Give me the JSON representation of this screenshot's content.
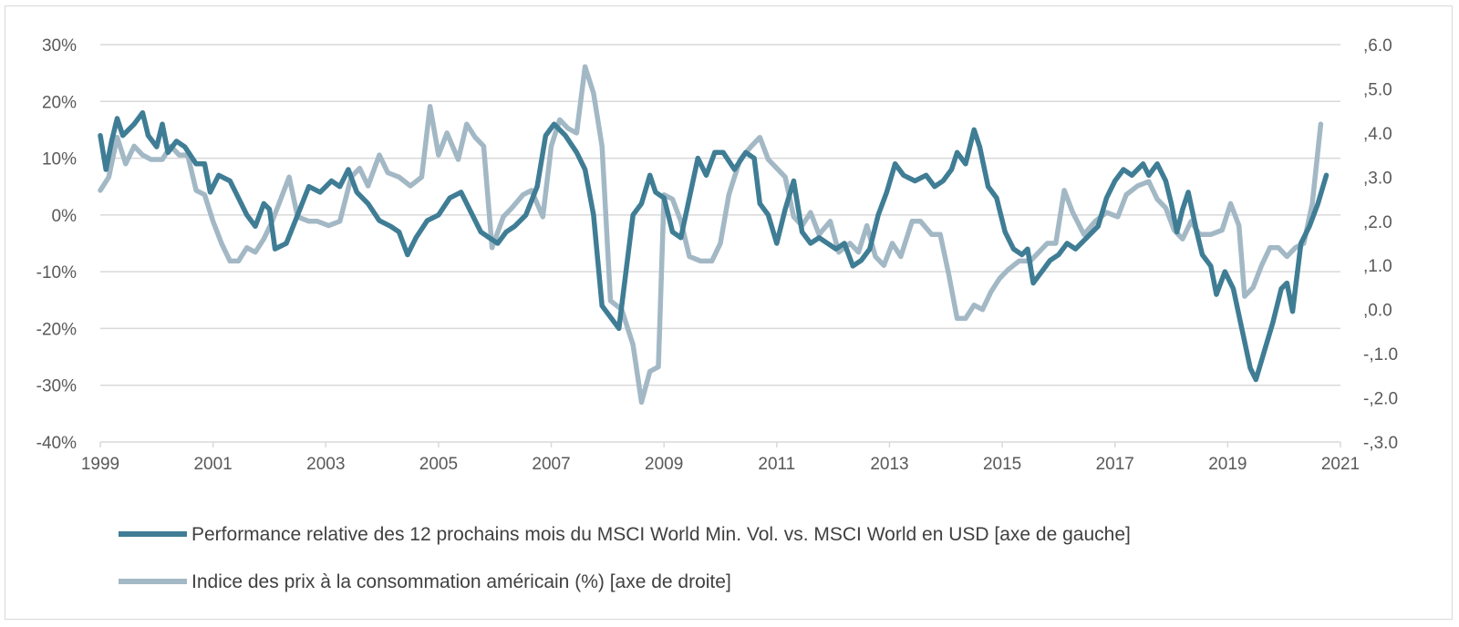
{
  "chart_data": {
    "type": "line",
    "title": "",
    "xlabel": "",
    "ylabel": "",
    "x_ticks": [
      "1999",
      "2001",
      "2003",
      "2005",
      "2007",
      "2009",
      "2011",
      "2013",
      "2015",
      "2017",
      "2019",
      "2021"
    ],
    "xlim": [
      1999,
      2021
    ],
    "ylim_left": [
      -40,
      30
    ],
    "ylim_right": [
      -3.0,
      6.0
    ],
    "y_ticks_left": [
      "30%",
      "20%",
      "10%",
      "0%",
      "-10%",
      "-20%",
      "-30%",
      "-40%"
    ],
    "y_ticks_right": [
      ",6.0",
      ",5.0",
      ",4.0",
      ",3.0",
      ",2.0",
      ",1.0",
      ",0.0",
      "-,1.0",
      "-,2.0",
      "-,3.0"
    ],
    "grid": "horizontal",
    "legend_placement": "bottom",
    "colors": {
      "series1": "#3f7d95",
      "series2": "#a3b8c5",
      "grid": "#d9d9d9",
      "text": "#595959"
    },
    "series": [
      {
        "name": "Performance relative des 12 prochains mois du MSCI World Min. Vol. vs. MSCI World en USD [axe de gauche]",
        "axis": "left",
        "unit": "%",
        "points": [
          [
            1999.0,
            14
          ],
          [
            1999.1,
            8
          ],
          [
            1999.2,
            13
          ],
          [
            1999.3,
            17
          ],
          [
            1999.4,
            14
          ],
          [
            1999.6,
            16
          ],
          [
            1999.75,
            18
          ],
          [
            1999.85,
            14
          ],
          [
            2000.0,
            12
          ],
          [
            2000.1,
            16
          ],
          [
            2000.2,
            11
          ],
          [
            2000.35,
            13
          ],
          [
            2000.5,
            12
          ],
          [
            2000.7,
            9
          ],
          [
            2000.85,
            9
          ],
          [
            2000.95,
            4
          ],
          [
            2001.1,
            7
          ],
          [
            2001.3,
            6
          ],
          [
            2001.45,
            3
          ],
          [
            2001.6,
            0
          ],
          [
            2001.75,
            -2
          ],
          [
            2001.9,
            2
          ],
          [
            2002.0,
            1
          ],
          [
            2002.1,
            -6
          ],
          [
            2002.3,
            -5
          ],
          [
            2002.5,
            0
          ],
          [
            2002.7,
            5
          ],
          [
            2002.9,
            4
          ],
          [
            2003.1,
            6
          ],
          [
            2003.25,
            5
          ],
          [
            2003.4,
            8
          ],
          [
            2003.55,
            4
          ],
          [
            2003.75,
            2
          ],
          [
            2003.95,
            -1
          ],
          [
            2004.15,
            -2
          ],
          [
            2004.3,
            -3
          ],
          [
            2004.45,
            -7
          ],
          [
            2004.6,
            -4
          ],
          [
            2004.8,
            -1
          ],
          [
            2005.0,
            0
          ],
          [
            2005.2,
            3
          ],
          [
            2005.4,
            4
          ],
          [
            2005.55,
            1
          ],
          [
            2005.75,
            -3
          ],
          [
            2005.9,
            -4
          ],
          [
            2006.05,
            -5
          ],
          [
            2006.2,
            -3
          ],
          [
            2006.35,
            -2
          ],
          [
            2006.55,
            0
          ],
          [
            2006.75,
            5
          ],
          [
            2006.9,
            14
          ],
          [
            2007.05,
            16
          ],
          [
            2007.25,
            14
          ],
          [
            2007.45,
            11
          ],
          [
            2007.6,
            8
          ],
          [
            2007.75,
            0
          ],
          [
            2007.9,
            -16
          ],
          [
            2008.05,
            -18
          ],
          [
            2008.2,
            -20
          ],
          [
            2008.3,
            -12
          ],
          [
            2008.45,
            0
          ],
          [
            2008.6,
            2
          ],
          [
            2008.75,
            7
          ],
          [
            2008.85,
            4
          ],
          [
            2009.0,
            3
          ],
          [
            2009.15,
            -3
          ],
          [
            2009.3,
            -4
          ],
          [
            2009.45,
            3
          ],
          [
            2009.6,
            10
          ],
          [
            2009.75,
            7
          ],
          [
            2009.9,
            11
          ],
          [
            2010.05,
            11
          ],
          [
            2010.25,
            8
          ],
          [
            2010.45,
            11
          ],
          [
            2010.6,
            10
          ],
          [
            2010.7,
            2
          ],
          [
            2010.85,
            0
          ],
          [
            2011.0,
            -5
          ],
          [
            2011.15,
            1
          ],
          [
            2011.3,
            6
          ],
          [
            2011.45,
            -3
          ],
          [
            2011.6,
            -5
          ],
          [
            2011.75,
            -4
          ],
          [
            2011.9,
            -5
          ],
          [
            2012.05,
            -6
          ],
          [
            2012.2,
            -5
          ],
          [
            2012.35,
            -9
          ],
          [
            2012.5,
            -8
          ],
          [
            2012.65,
            -6
          ],
          [
            2012.8,
            0
          ],
          [
            2012.95,
            4
          ],
          [
            2013.1,
            9
          ],
          [
            2013.25,
            7
          ],
          [
            2013.45,
            6
          ],
          [
            2013.65,
            7
          ],
          [
            2013.8,
            5
          ],
          [
            2013.95,
            6
          ],
          [
            2014.1,
            8
          ],
          [
            2014.2,
            11
          ],
          [
            2014.35,
            9
          ],
          [
            2014.5,
            15
          ],
          [
            2014.6,
            12
          ],
          [
            2014.75,
            5
          ],
          [
            2014.9,
            3
          ],
          [
            2015.05,
            -3
          ],
          [
            2015.2,
            -6
          ],
          [
            2015.35,
            -7
          ],
          [
            2015.45,
            -6
          ],
          [
            2015.55,
            -12
          ],
          [
            2015.7,
            -10
          ],
          [
            2015.85,
            -8
          ],
          [
            2016.0,
            -7
          ],
          [
            2016.15,
            -5
          ],
          [
            2016.3,
            -6
          ],
          [
            2016.5,
            -4
          ],
          [
            2016.7,
            -2
          ],
          [
            2016.85,
            3
          ],
          [
            2017.0,
            6
          ],
          [
            2017.15,
            8
          ],
          [
            2017.3,
            7
          ],
          [
            2017.5,
            9
          ],
          [
            2017.6,
            7
          ],
          [
            2017.75,
            9
          ],
          [
            2017.9,
            6
          ],
          [
            2018.0,
            2
          ],
          [
            2018.1,
            -3
          ],
          [
            2018.2,
            1
          ],
          [
            2018.3,
            4
          ],
          [
            2018.45,
            -3
          ],
          [
            2018.55,
            -7
          ],
          [
            2018.7,
            -9
          ],
          [
            2018.8,
            -14
          ],
          [
            2018.95,
            -10
          ],
          [
            2019.1,
            -13
          ],
          [
            2019.25,
            -20
          ],
          [
            2019.4,
            -27
          ],
          [
            2019.5,
            -29
          ],
          [
            2019.65,
            -24
          ],
          [
            2019.8,
            -19
          ],
          [
            2019.95,
            -13
          ],
          [
            2020.05,
            -12
          ],
          [
            2020.15,
            -17
          ],
          [
            2020.3,
            -5
          ],
          [
            2020.45,
            -2
          ],
          [
            2020.6,
            2
          ],
          [
            2020.75,
            7
          ]
        ]
      },
      {
        "name": "Indice des prix à la consommation américain (%) [axe de droite]",
        "axis": "right",
        "unit": "%",
        "points": [
          [
            1999.0,
            2.7
          ],
          [
            1999.15,
            3.0
          ],
          [
            1999.3,
            3.9
          ],
          [
            1999.45,
            3.3
          ],
          [
            1999.6,
            3.7
          ],
          [
            1999.75,
            3.5
          ],
          [
            1999.9,
            3.4
          ],
          [
            2000.1,
            3.4
          ],
          [
            2000.25,
            3.7
          ],
          [
            2000.4,
            3.5
          ],
          [
            2000.55,
            3.5
          ],
          [
            2000.7,
            2.7
          ],
          [
            2000.85,
            2.6
          ],
          [
            2001.0,
            2.0
          ],
          [
            2001.15,
            1.5
          ],
          [
            2001.3,
            1.1
          ],
          [
            2001.45,
            1.1
          ],
          [
            2001.6,
            1.4
          ],
          [
            2001.75,
            1.3
          ],
          [
            2001.9,
            1.6
          ],
          [
            2002.05,
            2.0
          ],
          [
            2002.2,
            2.5
          ],
          [
            2002.35,
            3.0
          ],
          [
            2002.5,
            2.1
          ],
          [
            2002.7,
            2.0
          ],
          [
            2002.85,
            2.0
          ],
          [
            2003.05,
            1.9
          ],
          [
            2003.25,
            2.0
          ],
          [
            2003.45,
            3.0
          ],
          [
            2003.6,
            3.2
          ],
          [
            2003.75,
            2.8
          ],
          [
            2003.95,
            3.5
          ],
          [
            2004.1,
            3.1
          ],
          [
            2004.3,
            3.0
          ],
          [
            2004.5,
            2.8
          ],
          [
            2004.7,
            3.0
          ],
          [
            2004.85,
            4.6
          ],
          [
            2005.0,
            3.5
          ],
          [
            2005.15,
            4.0
          ],
          [
            2005.35,
            3.4
          ],
          [
            2005.5,
            4.2
          ],
          [
            2005.65,
            3.9
          ],
          [
            2005.8,
            3.7
          ],
          [
            2005.95,
            1.4
          ],
          [
            2006.15,
            2.1
          ],
          [
            2006.3,
            2.3
          ],
          [
            2006.5,
            2.6
          ],
          [
            2006.65,
            2.7
          ],
          [
            2006.85,
            2.1
          ],
          [
            2007.0,
            3.7
          ],
          [
            2007.15,
            4.3
          ],
          [
            2007.3,
            4.1
          ],
          [
            2007.45,
            4.0
          ],
          [
            2007.6,
            5.5
          ],
          [
            2007.75,
            4.9
          ],
          [
            2007.9,
            3.7
          ],
          [
            2008.05,
            0.2
          ],
          [
            2008.25,
            0.0
          ],
          [
            2008.45,
            -0.8
          ],
          [
            2008.6,
            -2.1
          ],
          [
            2008.75,
            -1.4
          ],
          [
            2008.9,
            -1.3
          ],
          [
            2009.0,
            2.6
          ],
          [
            2009.15,
            2.5
          ],
          [
            2009.3,
            2.0
          ],
          [
            2009.45,
            1.2
          ],
          [
            2009.65,
            1.1
          ],
          [
            2009.85,
            1.1
          ],
          [
            2010.0,
            1.5
          ],
          [
            2010.15,
            2.6
          ],
          [
            2010.35,
            3.4
          ],
          [
            2010.55,
            3.7
          ],
          [
            2010.7,
            3.9
          ],
          [
            2010.85,
            3.4
          ],
          [
            2011.0,
            3.2
          ],
          [
            2011.15,
            3.0
          ],
          [
            2011.3,
            2.1
          ],
          [
            2011.45,
            1.9
          ],
          [
            2011.6,
            2.2
          ],
          [
            2011.75,
            1.7
          ],
          [
            2011.95,
            2.0
          ],
          [
            2012.1,
            1.3
          ],
          [
            2012.3,
            1.5
          ],
          [
            2012.45,
            1.3
          ],
          [
            2012.6,
            1.9
          ],
          [
            2012.75,
            1.2
          ],
          [
            2012.9,
            1.0
          ],
          [
            2013.05,
            1.5
          ],
          [
            2013.2,
            1.2
          ],
          [
            2013.4,
            2.0
          ],
          [
            2013.55,
            2.0
          ],
          [
            2013.75,
            1.7
          ],
          [
            2013.9,
            1.7
          ],
          [
            2014.05,
            0.8
          ],
          [
            2014.2,
            -0.2
          ],
          [
            2014.35,
            -0.2
          ],
          [
            2014.5,
            0.1
          ],
          [
            2014.65,
            0.0
          ],
          [
            2014.8,
            0.4
          ],
          [
            2014.95,
            0.7
          ],
          [
            2015.1,
            0.9
          ],
          [
            2015.3,
            1.1
          ],
          [
            2015.5,
            1.1
          ],
          [
            2015.65,
            1.3
          ],
          [
            2015.8,
            1.5
          ],
          [
            2015.95,
            1.5
          ],
          [
            2016.1,
            2.7
          ],
          [
            2016.25,
            2.2
          ],
          [
            2016.45,
            1.7
          ],
          [
            2016.65,
            2.0
          ],
          [
            2016.85,
            2.2
          ],
          [
            2017.05,
            2.1
          ],
          [
            2017.2,
            2.6
          ],
          [
            2017.4,
            2.8
          ],
          [
            2017.6,
            2.9
          ],
          [
            2017.75,
            2.5
          ],
          [
            2017.9,
            2.3
          ],
          [
            2018.05,
            1.8
          ],
          [
            2018.2,
            1.6
          ],
          [
            2018.35,
            2.0
          ],
          [
            2018.5,
            1.7
          ],
          [
            2018.7,
            1.7
          ],
          [
            2018.9,
            1.8
          ],
          [
            2019.05,
            2.4
          ],
          [
            2019.2,
            1.9
          ],
          [
            2019.3,
            0.3
          ],
          [
            2019.45,
            0.5
          ],
          [
            2019.6,
            1.0
          ],
          [
            2019.75,
            1.4
          ],
          [
            2019.9,
            1.4
          ],
          [
            2020.05,
            1.2
          ],
          [
            2020.2,
            1.4
          ],
          [
            2020.35,
            1.5
          ],
          [
            2020.5,
            2.4
          ],
          [
            2020.65,
            4.2
          ]
        ]
      }
    ]
  }
}
